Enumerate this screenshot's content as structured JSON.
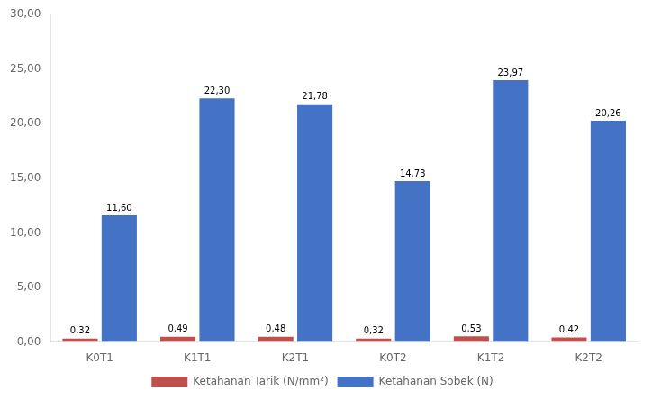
{
  "chart_data": {
    "type": "bar",
    "categories": [
      "K0T1",
      "K1T1",
      "K2T1",
      "K0T2",
      "K1T2",
      "K2T2"
    ],
    "series": [
      {
        "name": "Ketahanan Tarik (N/mm²)",
        "color": "#c0504d",
        "values": [
          0.32,
          0.49,
          0.48,
          0.32,
          0.53,
          0.42
        ],
        "value_labels": [
          "0,32",
          "0,49",
          "0,48",
          "0,32",
          "0,53",
          "0,42"
        ]
      },
      {
        "name": "Ketahanan Sobek (N)",
        "color": "#4472c4",
        "values": [
          11.6,
          22.3,
          21.78,
          14.73,
          23.97,
          20.26
        ],
        "value_labels": [
          "11,60",
          "22,30",
          "21,78",
          "14,73",
          "23,97",
          "20,26"
        ]
      }
    ],
    "ylim": [
      0,
      30
    ],
    "yticks": [
      {
        "value": 0,
        "label": "0,00"
      },
      {
        "value": 5,
        "label": "5,00"
      },
      {
        "value": 10,
        "label": "10,00"
      },
      {
        "value": 15,
        "label": "15,00"
      },
      {
        "value": 20,
        "label": "20,00"
      },
      {
        "value": 25,
        "label": "25,00"
      },
      {
        "value": 30,
        "label": "30,00"
      }
    ],
    "grid": false,
    "legend": "bottom",
    "data_labels": true
  }
}
